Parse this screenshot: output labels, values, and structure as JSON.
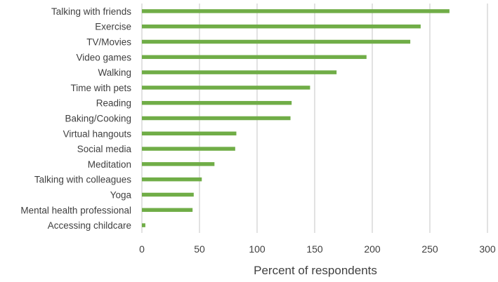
{
  "chart_data": {
    "type": "bar",
    "orientation": "horizontal",
    "categories": [
      "Talking with friends",
      "Exercise",
      "TV/Movies",
      "Video games",
      "Walking",
      "Time with pets",
      "Reading",
      "Baking/Cooking",
      "Virtual hangouts",
      "Social media",
      "Meditation",
      "Talking with colleagues",
      "Yoga",
      "Mental health professional",
      "Accessing childcare"
    ],
    "values": [
      267,
      242,
      233,
      195,
      169,
      146,
      130,
      129,
      82,
      81,
      63,
      52,
      45,
      44,
      3
    ],
    "xlabel": "Percent of respondents",
    "ylabel": "",
    "xlim": [
      0,
      300
    ],
    "xticks": [
      0,
      50,
      100,
      150,
      200,
      250,
      300
    ],
    "grid": "vertical",
    "legend": "none",
    "colors": {
      "bar": "#70AD47",
      "grid": "#D9D9D9",
      "text": "#404040"
    }
  }
}
